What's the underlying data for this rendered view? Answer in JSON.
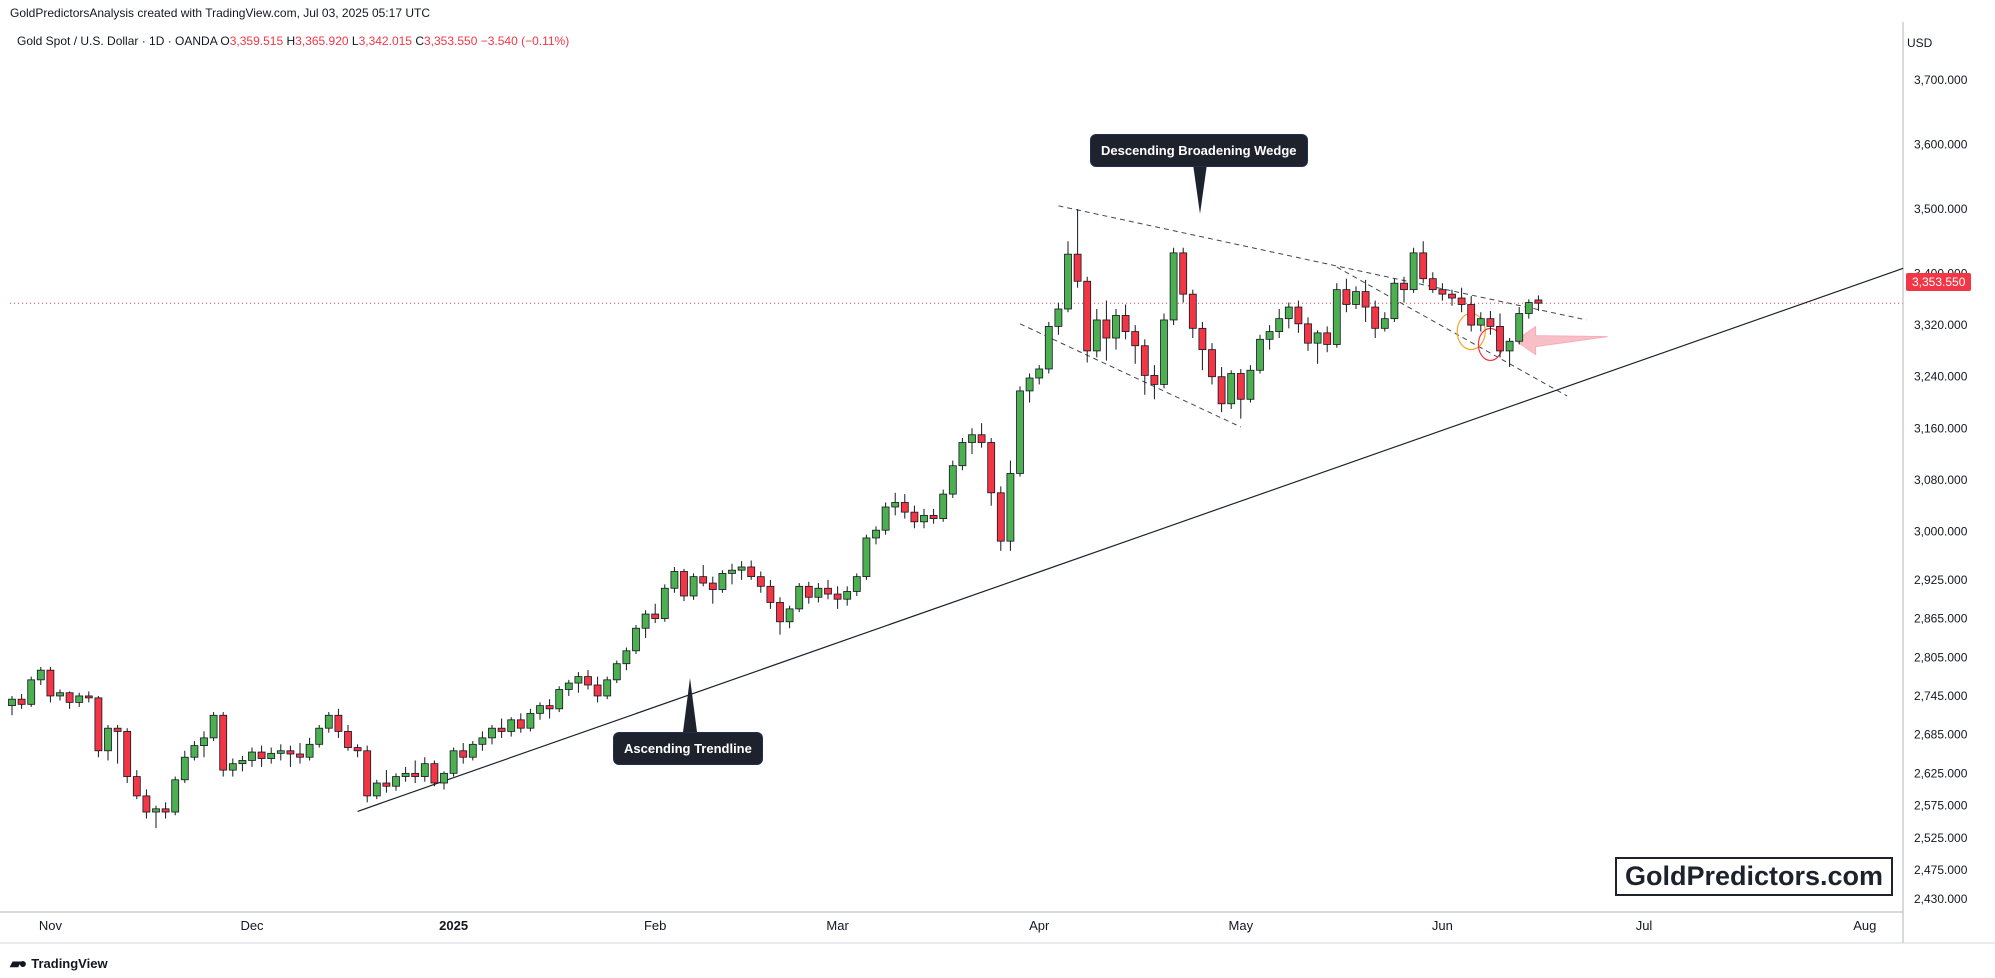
{
  "header": {
    "attribution": "GoldPredictorsAnalysis created with TradingView.com, Jul 03, 2025 05:17 UTC",
    "symbol": "Gold Spot / U.S. Dollar · 1D · OANDA",
    "ohlc": {
      "open_label": "O",
      "open": "3,359.515",
      "high_label": "H",
      "high": "3,365.920",
      "low_label": "L",
      "low": "3,342.015",
      "close_label": "C",
      "close": "3,353.550",
      "change": "−3.540 (−0.11%)"
    }
  },
  "currency": "USD",
  "last_price": "3,353.550",
  "annotations": {
    "wedge": "Descending Broadening Wedge",
    "trendline": "Ascending Trendline"
  },
  "watermark": "GoldPredictors.com",
  "footer": "TradingView",
  "colors": {
    "up": "#4caf50",
    "down": "#f23645",
    "text": "#131722",
    "grid": "#e0e3eb",
    "callout": "#1e222d"
  },
  "chart_data": {
    "type": "candlestick",
    "symbol": "XAUUSD",
    "timeframe": "1D",
    "ylim": [
      2410,
      3790
    ],
    "y_ticks": [
      "3,700.000",
      "3,600.000",
      "3,500.000",
      "3,400.000",
      "3,320.000",
      "3,240.000",
      "3,160.000",
      "3,080.000",
      "3,000.000",
      "2,925.000",
      "2,865.000",
      "2,805.000",
      "2,745.000",
      "2,685.000",
      "2,625.000",
      "2,575.000",
      "2,525.000",
      "2,475.000",
      "2,430.000"
    ],
    "x_labels": [
      {
        "label": "Nov",
        "i": 4
      },
      {
        "label": "Dec",
        "i": 25
      },
      {
        "label": "2025",
        "i": 46
      },
      {
        "label": "Feb",
        "i": 67
      },
      {
        "label": "Mar",
        "i": 86
      },
      {
        "label": "Apr",
        "i": 107
      },
      {
        "label": "May",
        "i": 128
      },
      {
        "label": "Jun",
        "i": 149
      },
      {
        "label": "Jul",
        "i": 170
      },
      {
        "label": "Aug",
        "i": 193
      }
    ],
    "candles": [
      [
        2730,
        2745,
        2715,
        2740
      ],
      [
        2740,
        2748,
        2725,
        2732
      ],
      [
        2732,
        2775,
        2728,
        2770
      ],
      [
        2770,
        2790,
        2762,
        2785
      ],
      [
        2785,
        2790,
        2735,
        2745
      ],
      [
        2745,
        2755,
        2738,
        2750
      ],
      [
        2750,
        2752,
        2725,
        2735
      ],
      [
        2735,
        2750,
        2728,
        2745
      ],
      [
        2745,
        2752,
        2735,
        2742
      ],
      [
        2742,
        2745,
        2650,
        2660
      ],
      [
        2660,
        2700,
        2645,
        2695
      ],
      [
        2695,
        2700,
        2640,
        2690
      ],
      [
        2690,
        2695,
        2610,
        2620
      ],
      [
        2620,
        2630,
        2585,
        2590
      ],
      [
        2590,
        2600,
        2555,
        2565
      ],
      [
        2565,
        2575,
        2540,
        2570
      ],
      [
        2570,
        2580,
        2555,
        2565
      ],
      [
        2565,
        2620,
        2560,
        2615
      ],
      [
        2615,
        2660,
        2610,
        2650
      ],
      [
        2650,
        2675,
        2645,
        2668
      ],
      [
        2668,
        2690,
        2650,
        2680
      ],
      [
        2680,
        2720,
        2675,
        2715
      ],
      [
        2715,
        2720,
        2620,
        2630
      ],
      [
        2630,
        2648,
        2620,
        2640
      ],
      [
        2640,
        2652,
        2628,
        2645
      ],
      [
        2645,
        2665,
        2635,
        2658
      ],
      [
        2658,
        2668,
        2635,
        2648
      ],
      [
        2648,
        2665,
        2640,
        2656
      ],
      [
        2656,
        2670,
        2645,
        2660
      ],
      [
        2660,
        2668,
        2635,
        2655
      ],
      [
        2655,
        2672,
        2640,
        2650
      ],
      [
        2650,
        2680,
        2645,
        2670
      ],
      [
        2670,
        2700,
        2665,
        2695
      ],
      [
        2695,
        2720,
        2688,
        2715
      ],
      [
        2715,
        2725,
        2680,
        2690
      ],
      [
        2690,
        2700,
        2660,
        2665
      ],
      [
        2665,
        2670,
        2650,
        2660
      ],
      [
        2660,
        2668,
        2580,
        2590
      ],
      [
        2590,
        2615,
        2585,
        2610
      ],
      [
        2610,
        2630,
        2595,
        2605
      ],
      [
        2605,
        2625,
        2598,
        2620
      ],
      [
        2620,
        2635,
        2612,
        2625
      ],
      [
        2625,
        2645,
        2610,
        2620
      ],
      [
        2620,
        2650,
        2612,
        2640
      ],
      [
        2640,
        2645,
        2605,
        2610
      ],
      [
        2610,
        2628,
        2600,
        2625
      ],
      [
        2625,
        2665,
        2620,
        2660
      ],
      [
        2660,
        2672,
        2640,
        2650
      ],
      [
        2650,
        2675,
        2645,
        2670
      ],
      [
        2670,
        2690,
        2660,
        2680
      ],
      [
        2680,
        2700,
        2670,
        2695
      ],
      [
        2695,
        2710,
        2680,
        2690
      ],
      [
        2690,
        2712,
        2682,
        2708
      ],
      [
        2708,
        2718,
        2688,
        2695
      ],
      [
        2695,
        2725,
        2690,
        2718
      ],
      [
        2718,
        2735,
        2708,
        2730
      ],
      [
        2730,
        2740,
        2710,
        2725
      ],
      [
        2725,
        2760,
        2720,
        2755
      ],
      [
        2755,
        2770,
        2745,
        2765
      ],
      [
        2765,
        2782,
        2750,
        2775
      ],
      [
        2775,
        2785,
        2755,
        2762
      ],
      [
        2762,
        2775,
        2735,
        2745
      ],
      [
        2745,
        2775,
        2740,
        2770
      ],
      [
        2770,
        2800,
        2765,
        2795
      ],
      [
        2795,
        2820,
        2785,
        2815
      ],
      [
        2815,
        2855,
        2810,
        2850
      ],
      [
        2850,
        2878,
        2835,
        2872
      ],
      [
        2872,
        2888,
        2858,
        2865
      ],
      [
        2865,
        2918,
        2860,
        2912
      ],
      [
        2912,
        2945,
        2905,
        2938
      ],
      [
        2938,
        2942,
        2892,
        2900
      ],
      [
        2900,
        2935,
        2894,
        2930
      ],
      [
        2930,
        2948,
        2915,
        2920
      ],
      [
        2920,
        2930,
        2888,
        2910
      ],
      [
        2910,
        2940,
        2905,
        2935
      ],
      [
        2935,
        2950,
        2918,
        2940
      ],
      [
        2940,
        2954,
        2925,
        2945
      ],
      [
        2945,
        2955,
        2925,
        2930
      ],
      [
        2930,
        2938,
        2905,
        2915
      ],
      [
        2915,
        2925,
        2880,
        2890
      ],
      [
        2890,
        2898,
        2840,
        2860
      ],
      [
        2860,
        2885,
        2850,
        2880
      ],
      [
        2880,
        2920,
        2875,
        2915
      ],
      [
        2915,
        2922,
        2888,
        2898
      ],
      [
        2898,
        2920,
        2890,
        2912
      ],
      [
        2912,
        2925,
        2895,
        2903
      ],
      [
        2903,
        2915,
        2880,
        2895
      ],
      [
        2895,
        2915,
        2885,
        2907
      ],
      [
        2907,
        2935,
        2900,
        2930
      ],
      [
        2930,
        2995,
        2925,
        2990
      ],
      [
        2990,
        3008,
        2980,
        3002
      ],
      [
        3002,
        3045,
        2995,
        3038
      ],
      [
        3038,
        3060,
        3025,
        3045
      ],
      [
        3045,
        3058,
        3020,
        3030
      ],
      [
        3030,
        3040,
        3005,
        3015
      ],
      [
        3015,
        3035,
        3005,
        3025
      ],
      [
        3025,
        3035,
        3012,
        3020
      ],
      [
        3020,
        3065,
        3015,
        3058
      ],
      [
        3058,
        3110,
        3052,
        3102
      ],
      [
        3102,
        3145,
        3095,
        3138
      ],
      [
        3138,
        3160,
        3120,
        3150
      ],
      [
        3150,
        3168,
        3130,
        3138
      ],
      [
        3138,
        3145,
        3040,
        3060
      ],
      [
        3060,
        3070,
        2970,
        2985
      ],
      [
        2985,
        3110,
        2970,
        3090
      ],
      [
        3090,
        3225,
        3085,
        3218
      ],
      [
        3218,
        3245,
        3200,
        3238
      ],
      [
        3238,
        3258,
        3228,
        3252
      ],
      [
        3252,
        3325,
        3245,
        3318
      ],
      [
        3318,
        3355,
        3305,
        3345
      ],
      [
        3345,
        3450,
        3340,
        3430
      ],
      [
        3430,
        3500,
        3378,
        3388
      ],
      [
        3388,
        3395,
        3262,
        3280
      ],
      [
        3280,
        3345,
        3270,
        3328
      ],
      [
        3328,
        3358,
        3265,
        3300
      ],
      [
        3300,
        3345,
        3282,
        3335
      ],
      [
        3335,
        3352,
        3298,
        3310
      ],
      [
        3310,
        3320,
        3260,
        3288
      ],
      [
        3288,
        3298,
        3212,
        3242
      ],
      [
        3242,
        3258,
        3205,
        3228
      ],
      [
        3228,
        3338,
        3222,
        3328
      ],
      [
        3328,
        3440,
        3320,
        3432
      ],
      [
        3432,
        3440,
        3355,
        3368
      ],
      [
        3368,
        3375,
        3300,
        3315
      ],
      [
        3315,
        3325,
        3250,
        3282
      ],
      [
        3282,
        3292,
        3228,
        3240
      ],
      [
        3240,
        3255,
        3185,
        3198
      ],
      [
        3198,
        3250,
        3190,
        3245
      ],
      [
        3245,
        3252,
        3175,
        3205
      ],
      [
        3205,
        3258,
        3200,
        3250
      ],
      [
        3250,
        3305,
        3245,
        3298
      ],
      [
        3298,
        3320,
        3282,
        3310
      ],
      [
        3310,
        3345,
        3300,
        3330
      ],
      [
        3330,
        3355,
        3315,
        3348
      ],
      [
        3348,
        3358,
        3308,
        3322
      ],
      [
        3322,
        3332,
        3280,
        3292
      ],
      [
        3292,
        3312,
        3260,
        3308
      ],
      [
        3308,
        3318,
        3278,
        3290
      ],
      [
        3290,
        3385,
        3285,
        3375
      ],
      [
        3375,
        3392,
        3340,
        3352
      ],
      [
        3352,
        3380,
        3345,
        3372
      ],
      [
        3372,
        3390,
        3325,
        3348
      ],
      [
        3348,
        3358,
        3300,
        3315
      ],
      [
        3315,
        3340,
        3310,
        3330
      ],
      [
        3330,
        3392,
        3325,
        3385
      ],
      [
        3385,
        3395,
        3355,
        3375
      ],
      [
        3375,
        3440,
        3370,
        3432
      ],
      [
        3432,
        3450,
        3385,
        3392
      ],
      [
        3392,
        3402,
        3370,
        3375
      ],
      [
        3375,
        3385,
        3358,
        3368
      ],
      [
        3368,
        3375,
        3350,
        3362
      ],
      [
        3362,
        3378,
        3340,
        3352
      ],
      [
        3352,
        3365,
        3310,
        3320
      ],
      [
        3320,
        3340,
        3310,
        3330
      ],
      [
        3330,
        3342,
        3305,
        3318
      ],
      [
        3318,
        3338,
        3270,
        3280
      ],
      [
        3280,
        3300,
        3255,
        3295
      ],
      [
        3295,
        3348,
        3290,
        3338
      ],
      [
        3338,
        3360,
        3330,
        3355
      ],
      [
        3359,
        3366,
        3342,
        3354
      ]
    ]
  }
}
